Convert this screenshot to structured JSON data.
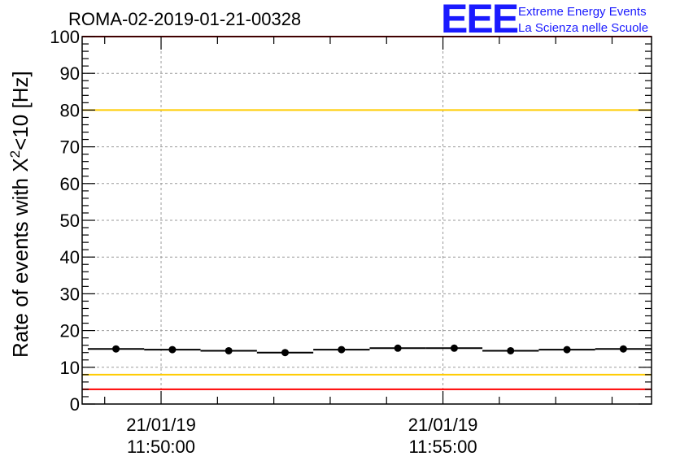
{
  "chart_data": {
    "type": "scatter",
    "title": "ROMA-02-2019-01-21-00328",
    "ylabel": "Rate of events with X²<10 [Hz]",
    "ylabel_parts": {
      "before": "Rate of events with X",
      "sup": "2",
      "after": "<10 [Hz]"
    },
    "xlabel": "",
    "ylim": [
      0,
      100
    ],
    "yticks": [
      "0",
      "10",
      "20",
      "30",
      "40",
      "50",
      "60",
      "70",
      "80",
      "90",
      "100"
    ],
    "xlim_minutes": [
      -1.4,
      8.7
    ],
    "xticks": [
      {
        "date": "21/01/19",
        "time": "11:50:00",
        "minute": 0
      },
      {
        "date": "21/01/19",
        "time": "11:55:00",
        "minute": 5
      }
    ],
    "grid": true,
    "series": [
      {
        "x_minutes": [
          -0.8,
          0.2,
          1.2,
          2.2,
          3.2,
          4.2,
          5.2,
          6.2,
          7.2,
          8.2
        ],
        "y": [
          15.0,
          14.8,
          14.5,
          14.0,
          14.8,
          15.2,
          15.2,
          14.5,
          14.8,
          15.0
        ],
        "x_half_width_minutes": 0.5
      }
    ],
    "reference_lines": [
      {
        "y": 100,
        "color": "#ff0000"
      },
      {
        "y": 80,
        "color": "#ffcc00"
      },
      {
        "y": 8,
        "color": "#ffcc00"
      },
      {
        "y": 4,
        "color": "#ff0000"
      }
    ]
  },
  "logo": {
    "letters": "EEE",
    "line1": "Extreme Energy Events",
    "line2": "La Scienza nelle Scuole"
  }
}
